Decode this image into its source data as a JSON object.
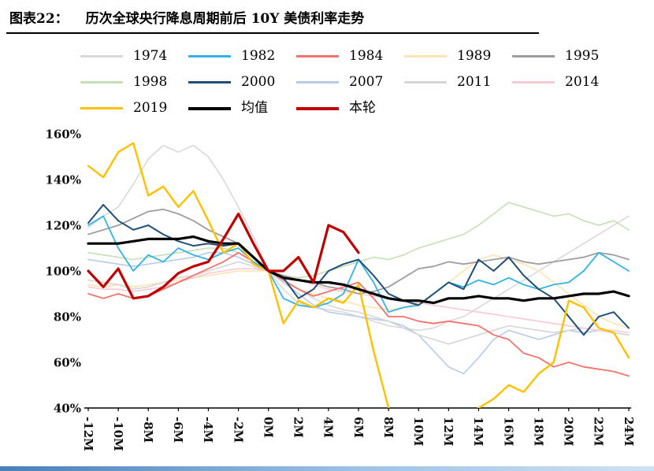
{
  "title": {
    "prefix": "图表22：",
    "text": "历次全球央行降息周期前后 10Y 美债利率走势"
  },
  "chart_data": {
    "type": "line",
    "title": "历次全球央行降息周期前后 10Y 美债利率走势",
    "x_label_unit": "M",
    "y_unit": "%",
    "ylim": [
      40,
      160
    ],
    "grid": false,
    "legend_position": "top",
    "x_months": [
      -12,
      -11,
      -10,
      -9,
      -8,
      -7,
      -6,
      -5,
      -4,
      -3,
      -2,
      -1,
      0,
      1,
      2,
      3,
      4,
      5,
      6,
      7,
      8,
      9,
      10,
      11,
      12,
      13,
      14,
      15,
      16,
      17,
      18,
      19,
      20,
      21,
      22,
      23,
      24
    ],
    "xtick_labels": [
      "-12M",
      "-10M",
      "-8M",
      "-6M",
      "-4M",
      "-2M",
      "0M",
      "2M",
      "4M",
      "6M",
      "8M",
      "10M",
      "12M",
      "14M",
      "16M",
      "18M",
      "20M",
      "22M",
      "24M"
    ],
    "ytick_labels": [
      "160%",
      "140%",
      "120%",
      "100%",
      "80%",
      "60%",
      "40%"
    ],
    "legend_rows": [
      [
        "1974",
        "1982",
        "1984",
        "1989",
        "1995"
      ],
      [
        "1998",
        "2000",
        "2007",
        "2011",
        "2014"
      ],
      [
        "2019",
        "均值",
        "本轮"
      ]
    ],
    "series": [
      {
        "name": "1974",
        "color": "#d9d9d9",
        "width": 1.6,
        "values": [
          119,
          124,
          128,
          138,
          149,
          155,
          152,
          155,
          150,
          140,
          128,
          115,
          100,
          92,
          86,
          84,
          83,
          82,
          80,
          78,
          76,
          75,
          74,
          75,
          78,
          80,
          84,
          88,
          92,
          96,
          100,
          104,
          108,
          112,
          116,
          120,
          124
        ]
      },
      {
        "name": "1989",
        "color": "#ffe3b3",
        "width": 1.6,
        "values": [
          94,
          93,
          94,
          93,
          94,
          95,
          96,
          97,
          98,
          99,
          100,
          100,
          100,
          95,
          92,
          90,
          88,
          87,
          85,
          84,
          83,
          84,
          86,
          90,
          95,
          100,
          105,
          107,
          105,
          103,
          100,
          95,
          90,
          85,
          80,
          77,
          75
        ]
      },
      {
        "name": "1998",
        "color": "#c5e0b4",
        "width": 1.6,
        "values": [
          108,
          107,
          106,
          105,
          106,
          107,
          108,
          109,
          110,
          110,
          108,
          104,
          100,
          98,
          97,
          98,
          100,
          102,
          104,
          106,
          105,
          107,
          110,
          112,
          114,
          116,
          120,
          125,
          130,
          128,
          126,
          124,
          125,
          122,
          120,
          122,
          118
        ]
      },
      {
        "name": "2007",
        "color": "#b9cbea",
        "width": 1.6,
        "values": [
          105,
          104,
          103,
          102,
          103,
          104,
          105,
          106,
          108,
          108,
          106,
          103,
          100,
          95,
          90,
          85,
          82,
          81,
          80,
          79,
          78,
          76,
          72,
          65,
          58,
          55,
          62,
          70,
          74,
          72,
          70,
          72,
          74,
          73,
          74,
          73,
          72
        ]
      },
      {
        "name": "2011",
        "color": "#d6d6d6",
        "width": 1.6,
        "values": [
          96,
          95,
          94,
          92,
          93,
          95,
          97,
          98,
          100,
          102,
          104,
          102,
          100,
          96,
          92,
          88,
          85,
          83,
          82,
          80,
          78,
          75,
          72,
          70,
          68,
          70,
          72,
          74,
          76,
          75,
          74,
          73,
          74,
          75,
          74,
          73,
          72
        ]
      },
      {
        "name": "2014",
        "color": "#f8cbd4",
        "width": 1.6,
        "values": [
          93,
          92,
          92,
          91,
          92,
          93,
          95,
          97,
          99,
          100,
          101,
          101,
          100,
          98,
          96,
          94,
          92,
          91,
          90,
          89,
          88,
          87,
          86,
          85,
          84,
          83,
          82,
          81,
          80,
          79,
          78,
          77,
          76,
          75,
          74,
          74,
          73
        ]
      },
      {
        "name": "1995",
        "color": "#9e9e9e",
        "width": 1.8,
        "values": [
          116,
          118,
          120,
          123,
          126,
          127,
          125,
          122,
          118,
          115,
          112,
          106,
          100,
          98,
          96,
          95,
          93,
          92,
          90,
          91,
          93,
          97,
          101,
          102,
          104,
          103,
          104,
          105,
          106,
          104,
          103,
          104,
          105,
          106,
          108,
          107,
          105
        ]
      },
      {
        "name": "1984",
        "color": "#f4726d",
        "width": 1.8,
        "values": [
          90,
          88,
          90,
          88,
          89,
          92,
          95,
          98,
          101,
          104,
          108,
          104,
          100,
          96,
          92,
          89,
          91,
          93,
          95,
          88,
          80,
          80,
          78,
          77,
          78,
          77,
          76,
          72,
          70,
          64,
          62,
          58,
          60,
          58,
          57,
          56,
          54
        ]
      },
      {
        "name": "1982",
        "color": "#33b3e3",
        "width": 1.8,
        "values": [
          120,
          124,
          110,
          100,
          107,
          104,
          110,
          107,
          105,
          108,
          110,
          104,
          100,
          88,
          85,
          84,
          86,
          90,
          105,
          95,
          82,
          84,
          85,
          90,
          95,
          93,
          96,
          94,
          97,
          94,
          92,
          94,
          95,
          100,
          108,
          104,
          100
        ]
      },
      {
        "name": "2000",
        "color": "#1f4e79",
        "width": 2,
        "values": [
          121,
          129,
          122,
          118,
          120,
          116,
          113,
          111,
          112,
          111,
          112,
          106,
          100,
          97,
          88,
          92,
          100,
          103,
          105,
          98,
          90,
          87,
          85,
          90,
          95,
          92,
          105,
          100,
          106,
          98,
          92,
          88,
          80,
          72,
          80,
          82,
          75
        ]
      },
      {
        "name": "2019",
        "color": "#ffc000",
        "width": 2.4,
        "values": [
          146,
          141,
          152,
          156,
          133,
          137,
          128,
          135,
          122,
          108,
          112,
          103,
          100,
          77,
          87,
          84,
          88,
          86,
          94,
          65,
          40,
          32,
          30,
          30,
          32,
          36,
          40,
          44,
          50,
          47,
          55,
          60,
          87,
          84,
          75,
          73,
          62
        ]
      },
      {
        "name": "均值",
        "color": "#000000",
        "width": 3.2,
        "values": [
          112,
          112,
          112,
          113,
          114,
          114,
          114,
          115,
          113,
          112,
          112,
          106,
          100,
          97,
          96,
          95,
          95,
          94,
          92,
          90,
          88,
          87,
          87,
          86,
          88,
          88,
          89,
          88,
          88,
          87,
          88,
          88,
          89,
          90,
          90,
          91,
          89
        ]
      },
      {
        "name": "本轮",
        "color": "#c00000",
        "width": 3.2,
        "values": [
          100,
          93,
          101,
          88,
          89,
          93,
          99,
          102,
          104,
          114,
          125,
          112,
          100,
          100,
          106,
          95,
          120,
          117,
          108,
          null,
          null,
          null,
          null,
          null,
          null,
          null,
          null,
          null,
          null,
          null,
          null,
          null,
          null,
          null,
          null,
          null,
          null
        ]
      }
    ]
  },
  "footer": {
    "accent_color": "#4a7ebb"
  }
}
